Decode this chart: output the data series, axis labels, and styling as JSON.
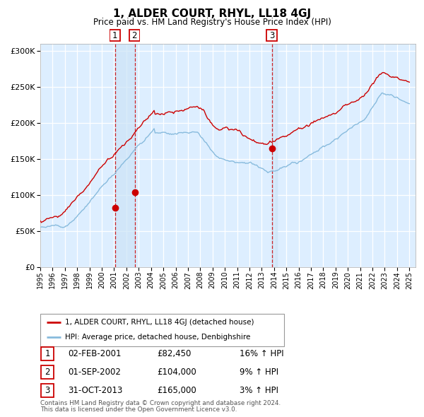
{
  "title": "1, ALDER COURT, RHYL, LL18 4GJ",
  "subtitle": "Price paid vs. HM Land Registry's House Price Index (HPI)",
  "legend_line1": "1, ALDER COURT, RHYL, LL18 4GJ (detached house)",
  "legend_line2": "HPI: Average price, detached house, Denbighshire",
  "transactions": [
    {
      "num": 1,
      "date": "02-FEB-2001",
      "price": 82450,
      "hpi_pct": "16%",
      "direction": "↑"
    },
    {
      "num": 2,
      "date": "01-SEP-2002",
      "price": 104000,
      "hpi_pct": "9%",
      "direction": "↑"
    },
    {
      "num": 3,
      "date": "31-OCT-2013",
      "price": 165000,
      "hpi_pct": "3%",
      "direction": "↑"
    }
  ],
  "transaction_years": [
    2001.09,
    2002.67,
    2013.83
  ],
  "transaction_prices": [
    82450,
    104000,
    165000
  ],
  "footnote_line1": "Contains HM Land Registry data © Crown copyright and database right 2024.",
  "footnote_line2": "This data is licensed under the Open Government Licence v3.0.",
  "red_color": "#cc0000",
  "blue_color": "#88bbdd",
  "bg_color": "#ddeeff",
  "ylim": [
    0,
    310000
  ],
  "xlim_start": 1995.0,
  "xlim_end": 2025.5,
  "yticks": [
    0,
    50000,
    100000,
    150000,
    200000,
    250000,
    300000
  ],
  "ytick_labels": [
    "£0",
    "£50K",
    "£100K",
    "£150K",
    "£200K",
    "£250K",
    "£300K"
  ],
  "xticks": [
    1995,
    1996,
    1997,
    1998,
    1999,
    2000,
    2001,
    2002,
    2003,
    2004,
    2005,
    2006,
    2007,
    2008,
    2009,
    2010,
    2011,
    2012,
    2013,
    2014,
    2015,
    2016,
    2017,
    2018,
    2019,
    2020,
    2021,
    2022,
    2023,
    2024,
    2025
  ]
}
